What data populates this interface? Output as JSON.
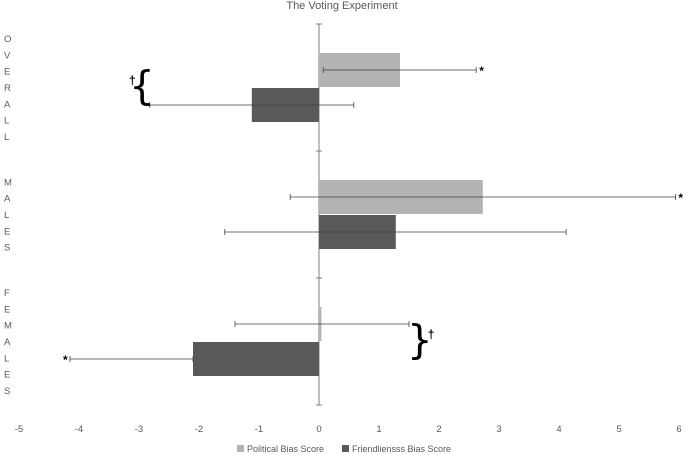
{
  "chart_data": {
    "type": "bar",
    "orientation": "horizontal",
    "title": "The Voting Experiment",
    "xlim": [
      -5,
      6
    ],
    "x_ticks": [
      "-5",
      "-4",
      "-3",
      "-2",
      "-1",
      "0",
      "1",
      "2",
      "3",
      "4",
      "5",
      "6"
    ],
    "categories": [
      "OVERALL",
      "MALES",
      "FEMALES"
    ],
    "series": [
      {
        "name": "Political Bias Score",
        "color": "#b3b3b3",
        "values": [
          1.35,
          2.73,
          0.04
        ],
        "error_low": [
          0.07,
          -0.48,
          -1.4
        ],
        "error_high": [
          2.62,
          5.94,
          1.5
        ]
      },
      {
        "name": "Friendliensss Bias Score",
        "color": "#595959",
        "values": [
          -1.12,
          1.28,
          -2.1
        ],
        "error_low": [
          -2.82,
          -1.57,
          -4.15
        ],
        "error_high": [
          0.58,
          4.12,
          -2.1
        ]
      }
    ],
    "annotations": [
      {
        "text": "*",
        "category": "OVERALL",
        "series": "Political Bias Score"
      },
      {
        "text": "†",
        "category": "OVERALL",
        "bracket": "{",
        "side": "left"
      },
      {
        "text": "*",
        "category": "MALES",
        "series": "Political Bias Score"
      },
      {
        "text": "†",
        "category": "FEMALES",
        "bracket": "}",
        "side": "right"
      },
      {
        "text": "*",
        "category": "FEMALES",
        "series": "Friendliensss Bias Score"
      }
    ],
    "legend": {
      "position": "bottom"
    },
    "grid": false
  }
}
